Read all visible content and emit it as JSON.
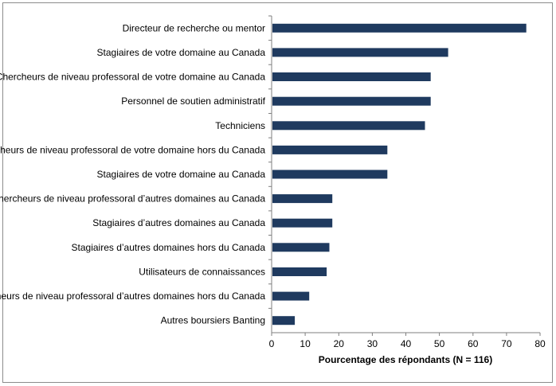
{
  "chart_data": {
    "type": "bar",
    "orientation": "horizontal",
    "categories": [
      "Directeur de recherche ou mentor",
      "Stagiaires de votre domaine au Canada",
      "Chercheurs de niveau professoral de votre domaine au Canada",
      "Personnel de soutien administratif",
      "Techniciens",
      "Chercheurs de niveau professoral de votre domaine hors du Canada",
      "Stagiaires de votre domaine au Canada",
      "Chercheurs de niveau professoral d’autres domaines au Canada",
      "Stagiaires d’autres domaines au Canada",
      "Stagiaires d’autres domaines hors du Canada",
      "Utilisateurs de connaissances",
      "Chercheurs de niveau professoral d’autres domaines hors du Canada",
      "Autres boursiers Banting"
    ],
    "values": [
      75.9,
      52.6,
      47.4,
      47.4,
      45.7,
      34.5,
      34.5,
      18.1,
      18.1,
      17.2,
      16.4,
      11.2,
      6.9
    ],
    "xlabel": "Pourcentage des répondants (N = 116)",
    "ylabel": "",
    "title": "",
    "xlim": [
      0,
      80
    ],
    "xticks": [
      "0",
      "10",
      "20",
      "30",
      "40",
      "50",
      "60",
      "70",
      "80"
    ],
    "grid": false,
    "legend": "none",
    "bar_color": "#1f3a5f"
  }
}
